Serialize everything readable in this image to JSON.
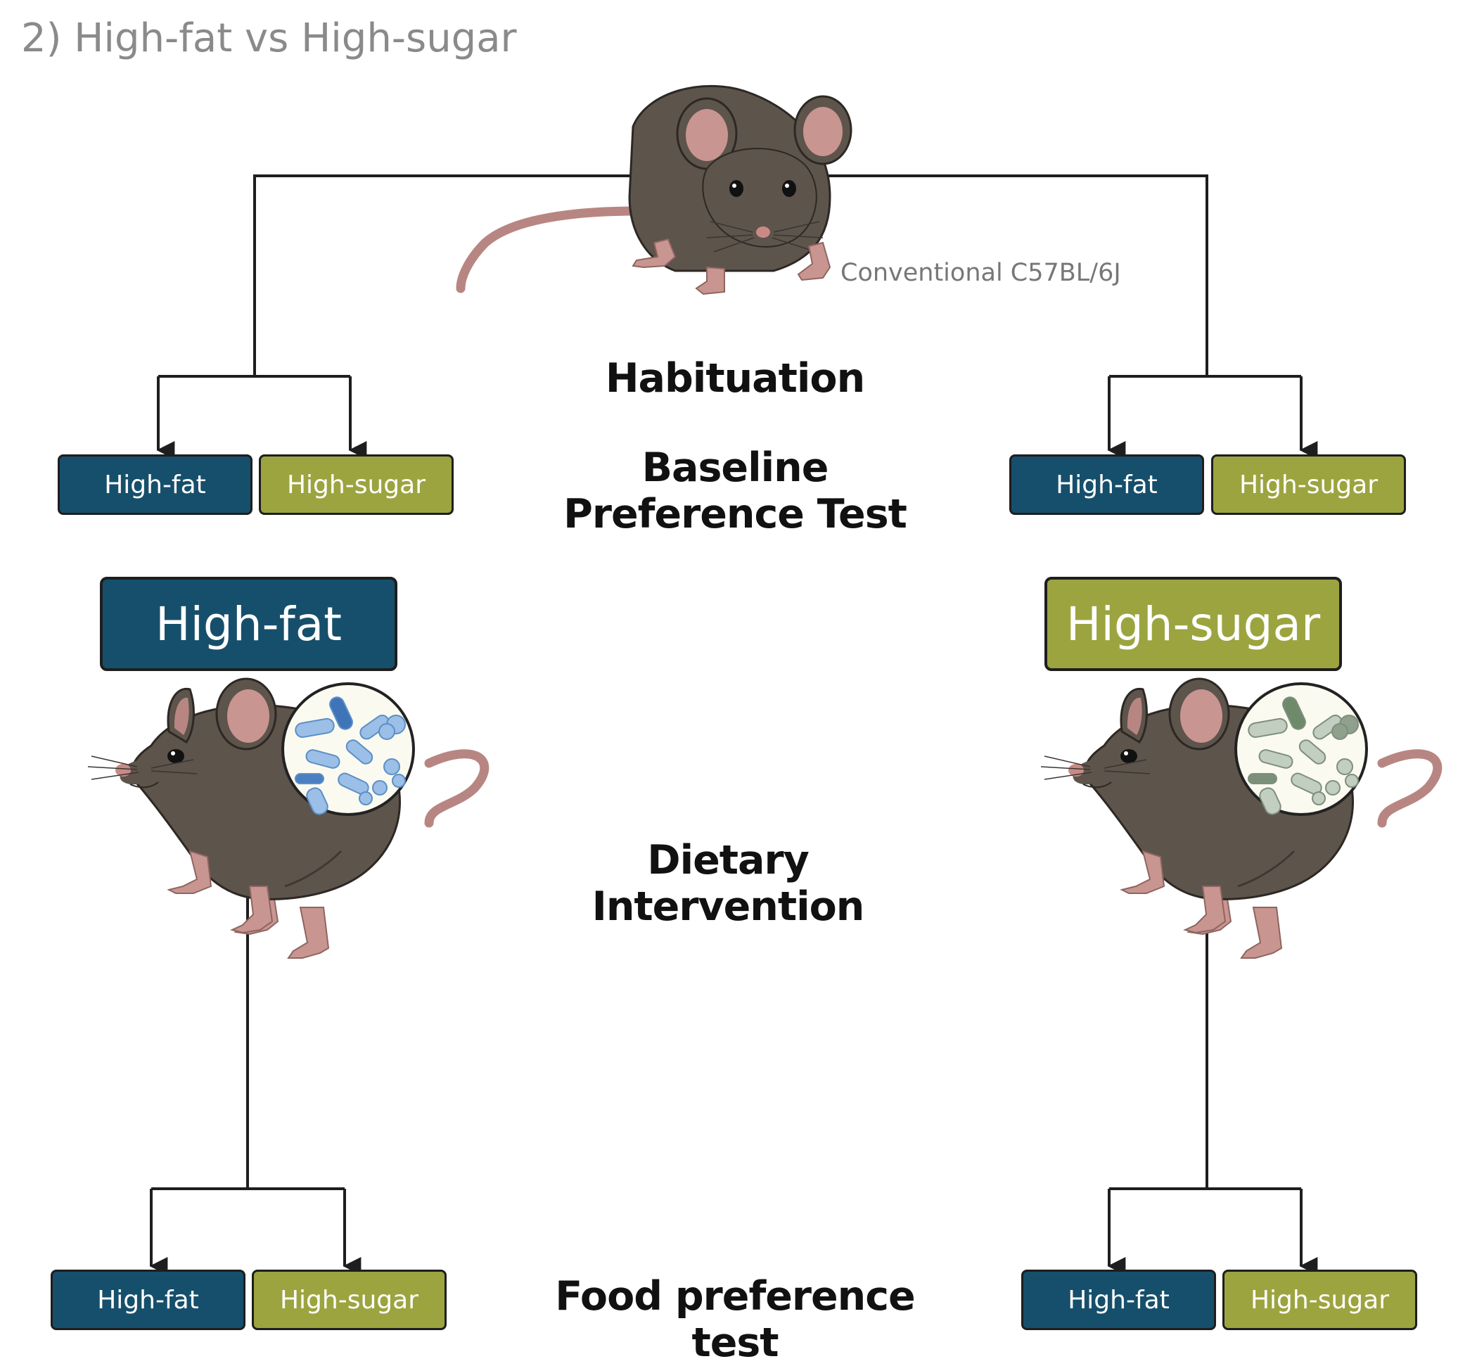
{
  "title": "2) High-fat vs High-sugar",
  "strain_label": "Conventional C57BL/6J",
  "stages": {
    "habituation": "Habituation",
    "baseline_line1": "Baseline",
    "baseline_line2": "Preference Test",
    "dietary_line1": "Dietary",
    "dietary_line2": "Intervention",
    "food_test": "Food preference test"
  },
  "choice_labels": {
    "fat": "High-fat",
    "sugar": "High-sugar"
  },
  "diet_groups": {
    "left": "High-fat",
    "right": "High-sugar"
  },
  "colors": {
    "high_fat": "#164f6b",
    "high_sugar": "#9ca43f",
    "mouse_body": "#5d544c",
    "mouse_pink": "#c99590",
    "microbes_fat": "#5b8fc7",
    "microbes_sugar": "#8a9a88"
  },
  "icons": [
    "mouse-front-icon",
    "mouse-side-icon",
    "microbiome-icon",
    "arrow-down-icon"
  ]
}
